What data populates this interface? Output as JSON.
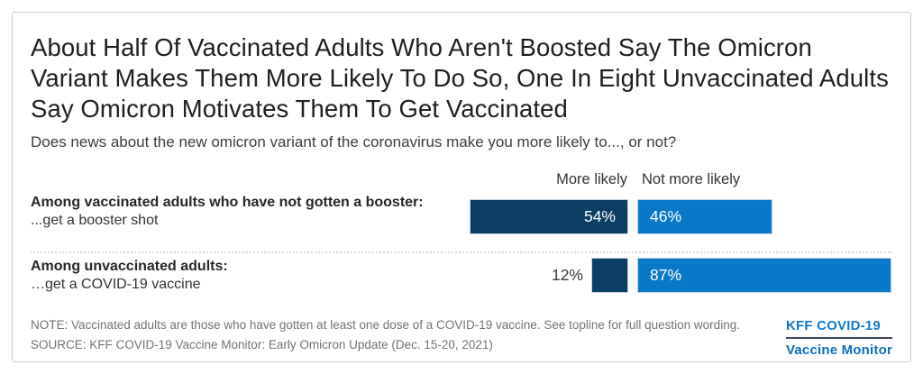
{
  "header": {
    "title": "About Half Of Vaccinated Adults Who Aren't Boosted Say The Omicron Variant Makes Them More Likely To Do So, One In Eight Unvaccinated Adults Say Omicron Motivates Them To Get Vaccinated",
    "subtitle": "Does news about the new omicron variant of the coronavirus make you more likely to..., or not?"
  },
  "chart_data": {
    "type": "bar",
    "orientation": "horizontal",
    "unit": "%",
    "legend": [
      "More likely",
      "Not more likely"
    ],
    "legend_position": "top",
    "colors": {
      "more_likely": "#0c3d63",
      "not_more_likely": "#0a78c8"
    },
    "rows": [
      {
        "group": "Among vaccinated adults who have not gotten a booster:",
        "item": "...get a booster shot",
        "more_likely": 54,
        "not_more_likely": 46
      },
      {
        "group": "Among unvaccinated adults:",
        "item": "…get a COVID-19 vaccine",
        "more_likely": 12,
        "not_more_likely": 87
      }
    ]
  },
  "footer": {
    "note": "NOTE: Vaccinated adults are those who have gotten at least one dose of a COVID-19 vaccine. See topline for full question wording.",
    "source": "SOURCE: KFF COVID-19 Vaccine Monitor: Early Omicron Update (Dec. 15-20, 2021)",
    "logo": {
      "line1": "KFF COVID-19",
      "line2": "Vaccine Monitor",
      "color": "#0e79cb"
    }
  }
}
